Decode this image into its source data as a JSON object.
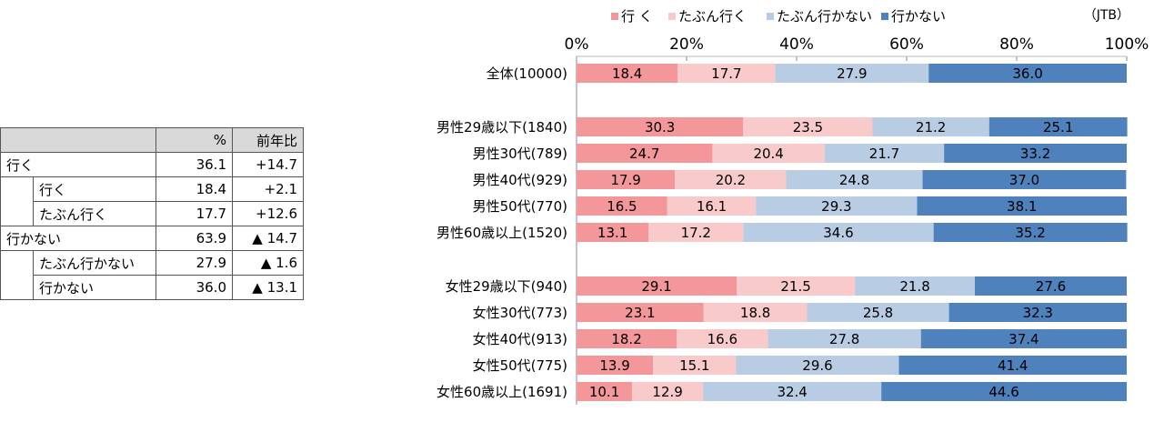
{
  "source": "（JTB）",
  "table": {
    "headers": [
      "",
      "%",
      "前年比"
    ],
    "rows": [
      {
        "label": "行く",
        "indent": false,
        "value": "36.1",
        "yoy": "+14.7"
      },
      {
        "label": "行く",
        "indent": true,
        "value": "18.4",
        "yoy": "+2.1"
      },
      {
        "label": "たぶん行く",
        "indent": true,
        "value": "17.7",
        "yoy": "+12.6"
      },
      {
        "label": "行かない",
        "indent": false,
        "value": "63.9",
        "yoy": "▲ 14.7"
      },
      {
        "label": "たぶん行かない",
        "indent": true,
        "value": "27.9",
        "yoy": "▲ 1.6"
      },
      {
        "label": "行かない",
        "indent": true,
        "value": "36.0",
        "yoy": "▲ 13.1"
      }
    ]
  },
  "chart_data": {
    "type": "bar",
    "orientation": "horizontal",
    "stacked": true,
    "xlim": [
      0,
      100
    ],
    "x_ticks": [
      "0%",
      "20%",
      "40%",
      "60%",
      "80%",
      "100%"
    ],
    "legend_position": "top",
    "categories": [
      "全体(10000)",
      "男性29歳以下(1840)",
      "男性30代(789)",
      "男性40代(929)",
      "男性50代(770)",
      "男性60歳以上(1520)",
      "女性29歳以下(940)",
      "女性30代(773)",
      "女性40代(913)",
      "女性50代(775)",
      "女性60歳以上(1691)"
    ],
    "series": [
      {
        "name": "行 く",
        "color": "#f4979a",
        "label_color": "#000000",
        "values": [
          18.4,
          30.3,
          24.7,
          17.9,
          16.5,
          13.1,
          29.1,
          23.1,
          18.2,
          13.9,
          10.1
        ]
      },
      {
        "name": "たぶん行く",
        "color": "#f9caca",
        "label_color": "#000000",
        "values": [
          17.7,
          23.5,
          20.4,
          20.2,
          16.1,
          17.2,
          21.5,
          18.8,
          16.6,
          15.1,
          12.9
        ]
      },
      {
        "name": "たぶん行かない",
        "color": "#b8cce4",
        "label_color": "#000000",
        "values": [
          27.9,
          21.2,
          21.7,
          24.8,
          29.3,
          34.6,
          21.8,
          25.8,
          27.8,
          29.6,
          32.4
        ]
      },
      {
        "name": "行かない",
        "color": "#4f81bd",
        "label_color": "#000000",
        "values": [
          36.0,
          25.1,
          33.2,
          37.0,
          38.1,
          35.2,
          27.6,
          32.3,
          37.4,
          41.4,
          44.6
        ]
      }
    ]
  }
}
